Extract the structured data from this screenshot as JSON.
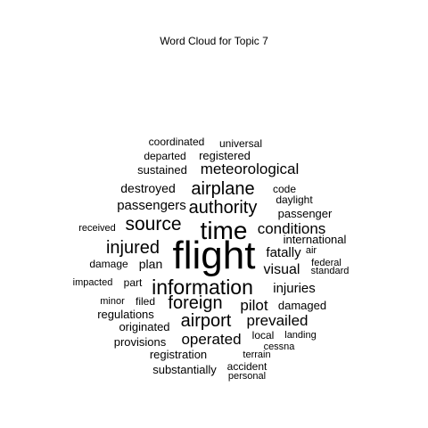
{
  "chart_data": {
    "type": "wordcloud",
    "title": "Word Cloud for Topic 7",
    "color": "#000000",
    "words": [
      {
        "text": "flight",
        "weight": 44
      },
      {
        "text": "time",
        "weight": 28
      },
      {
        "text": "information",
        "weight": 23
      },
      {
        "text": "source",
        "weight": 21
      },
      {
        "text": "injured",
        "weight": 20
      },
      {
        "text": "airplane",
        "weight": 20
      },
      {
        "text": "authority",
        "weight": 20
      },
      {
        "text": "airport",
        "weight": 20
      },
      {
        "text": "foreign",
        "weight": 20
      },
      {
        "text": "meteorological",
        "weight": 17
      },
      {
        "text": "conditions",
        "weight": 17
      },
      {
        "text": "operated",
        "weight": 17
      },
      {
        "text": "prevailed",
        "weight": 17
      },
      {
        "text": "pilot",
        "weight": 17
      },
      {
        "text": "visual",
        "weight": 16
      },
      {
        "text": "passengers",
        "weight": 15
      },
      {
        "text": "fatally",
        "weight": 15
      },
      {
        "text": "injuries",
        "weight": 15
      },
      {
        "text": "plan",
        "weight": 14
      },
      {
        "text": "destroyed",
        "weight": 14
      },
      {
        "text": "regulations",
        "weight": 13
      },
      {
        "text": "damaged",
        "weight": 13
      },
      {
        "text": "passenger",
        "weight": 13
      },
      {
        "text": "registration",
        "weight": 13
      },
      {
        "text": "provisions",
        "weight": 13
      },
      {
        "text": "originated",
        "weight": 13
      },
      {
        "text": "sustained",
        "weight": 13
      },
      {
        "text": "registered",
        "weight": 13
      },
      {
        "text": "substantially",
        "weight": 13
      },
      {
        "text": "international",
        "weight": 13
      },
      {
        "text": "damage",
        "weight": 12
      },
      {
        "text": "filed",
        "weight": 12
      },
      {
        "text": "part",
        "weight": 12
      },
      {
        "text": "departed",
        "weight": 12
      },
      {
        "text": "coordinated",
        "weight": 12
      },
      {
        "text": "universal",
        "weight": 12
      },
      {
        "text": "daylight",
        "weight": 12
      },
      {
        "text": "code",
        "weight": 12
      },
      {
        "text": "received",
        "weight": 11
      },
      {
        "text": "impacted",
        "weight": 11
      },
      {
        "text": "minor",
        "weight": 11
      },
      {
        "text": "local",
        "weight": 12
      },
      {
        "text": "landing",
        "weight": 11
      },
      {
        "text": "cessna",
        "weight": 11
      },
      {
        "text": "terrain",
        "weight": 11
      },
      {
        "text": "accident",
        "weight": 12
      },
      {
        "text": "personal",
        "weight": 11
      },
      {
        "text": "federal",
        "weight": 11
      },
      {
        "text": "standard",
        "weight": 11
      },
      {
        "text": "air",
        "weight": 11
      }
    ]
  }
}
